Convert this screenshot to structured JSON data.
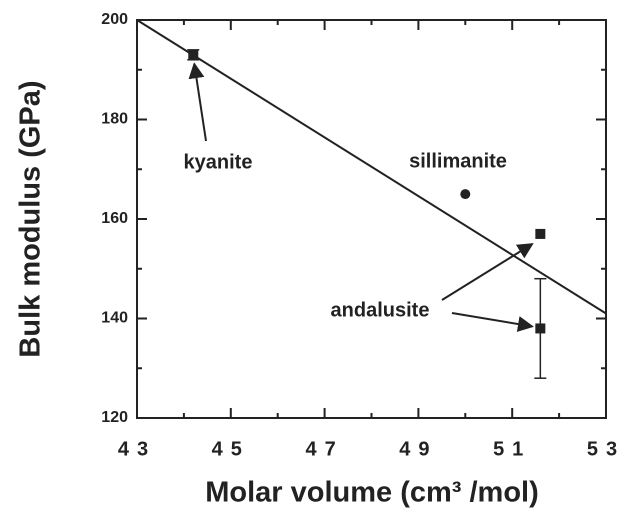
{
  "chart_data": {
    "type": "scatter",
    "xlabel": "Molar volume (cm³ /mol)",
    "ylabel": "Bulk modulus (GPa)",
    "xlim": [
      43,
      53
    ],
    "ylim": [
      120,
      200
    ],
    "xticks": [
      43,
      45,
      47,
      49,
      51,
      53
    ],
    "yticks": [
      120,
      140,
      160,
      180,
      200
    ],
    "xminorticks": [
      44,
      46,
      48,
      50,
      52
    ],
    "yminorticks": [
      130,
      150,
      170,
      190
    ],
    "color": "#222222",
    "series": [
      {
        "x": [
          44.2,
          50.0,
          51.6,
          51.6
        ],
        "values": [
          193,
          165,
          157,
          138
        ],
        "errors": [
          1,
          null,
          null,
          10
        ],
        "markers": [
          "square",
          "circle",
          "square",
          "square"
        ]
      },
      {
        "x": [
          43,
          53
        ],
        "values": [
          200,
          141
        ],
        "style": "line"
      }
    ],
    "annotations": [
      {
        "text": "kyanite",
        "point": 0
      },
      {
        "text": "sillimanite",
        "point": 1
      },
      {
        "text": "andalusite",
        "point": 2
      }
    ]
  }
}
